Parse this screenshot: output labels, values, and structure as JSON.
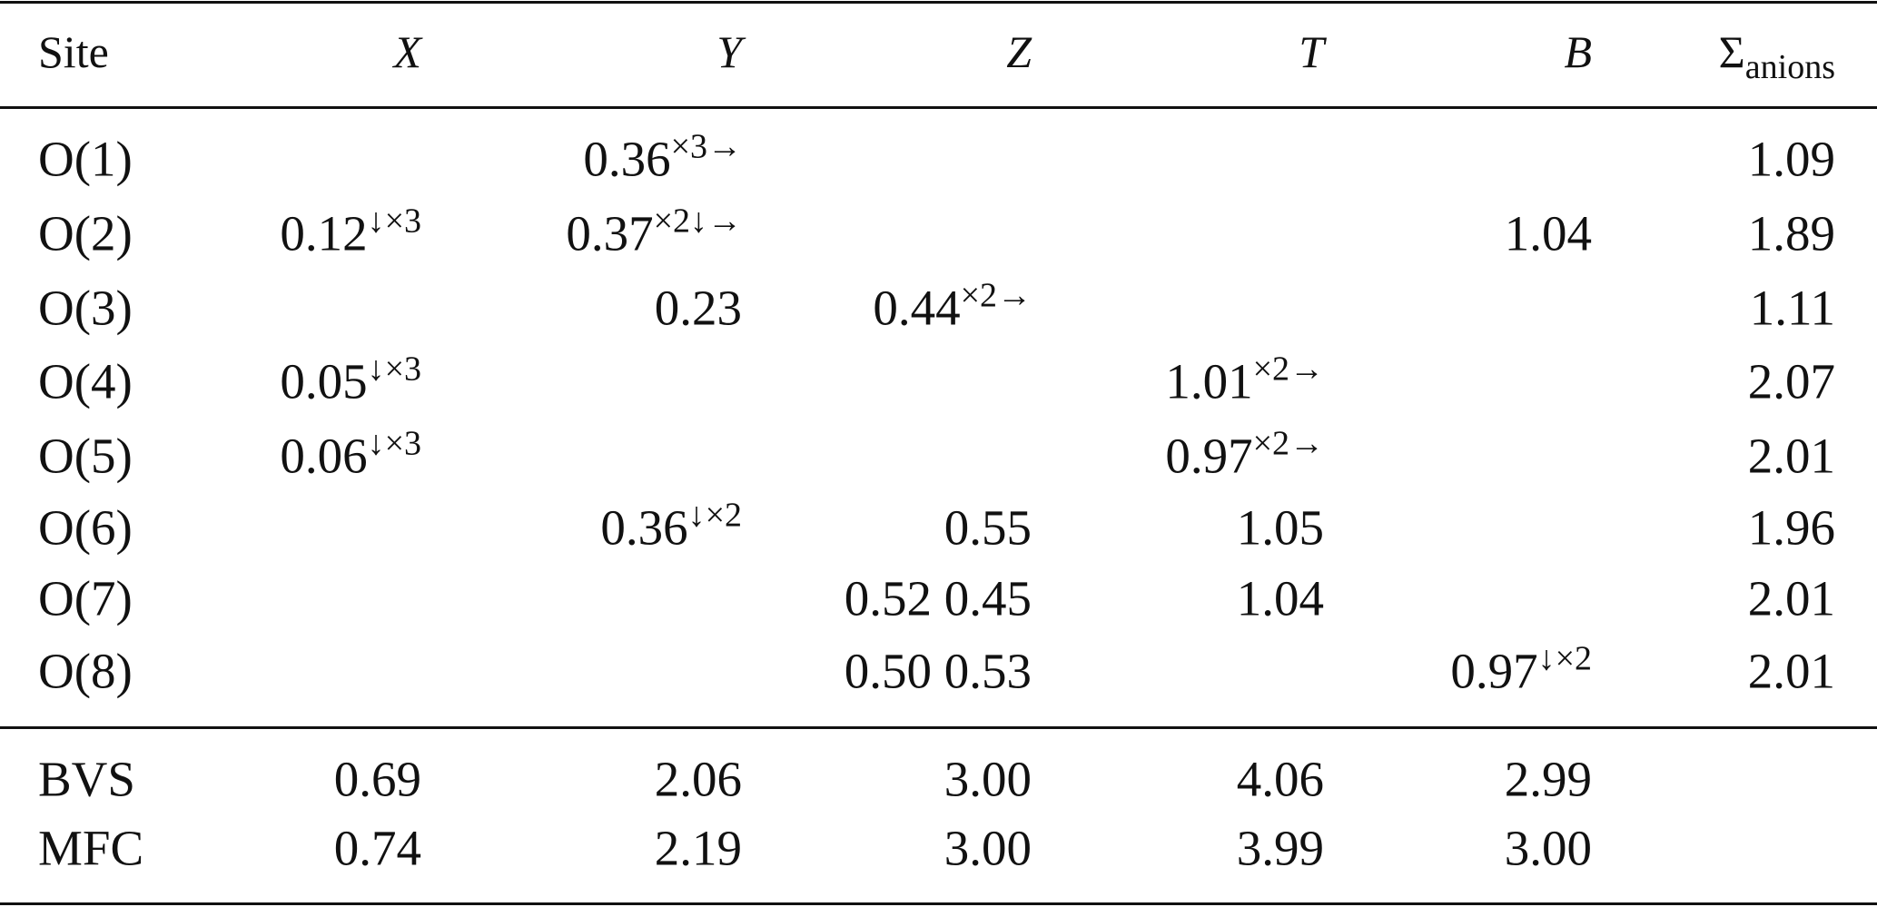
{
  "table": {
    "header": [
      "Site",
      "X",
      "Y",
      "Z",
      "T",
      "B",
      {
        "text": "Σ",
        "sub": "anions"
      }
    ],
    "rows": [
      [
        "O(1)",
        null,
        {
          "text": "0.36",
          "sup": "×3→"
        },
        null,
        null,
        null,
        "1.09"
      ],
      [
        "O(2)",
        {
          "text": "0.12",
          "sup": "↓×3"
        },
        {
          "text": "0.37",
          "sup": "×2↓→"
        },
        null,
        null,
        "1.04",
        "1.89"
      ],
      [
        "O(3)",
        null,
        "0.23",
        {
          "text": "0.44",
          "sup": "×2→"
        },
        null,
        null,
        "1.11"
      ],
      [
        "O(4)",
        {
          "text": "0.05",
          "sup": "↓×3"
        },
        null,
        null,
        {
          "text": "1.01",
          "sup": "×2→"
        },
        null,
        "2.07"
      ],
      [
        "O(5)",
        {
          "text": "0.06",
          "sup": "↓×3"
        },
        null,
        null,
        {
          "text": "0.97",
          "sup": "×2→"
        },
        null,
        "2.01"
      ],
      [
        "O(6)",
        null,
        {
          "text": "0.36",
          "sup": "↓×2"
        },
        "0.55",
        "1.05",
        null,
        "1.96"
      ],
      [
        "O(7)",
        null,
        null,
        "0.52 0.45",
        "1.04",
        null,
        "2.01"
      ],
      [
        "O(8)",
        null,
        null,
        "0.50 0.53",
        null,
        {
          "text": "0.97",
          "sup": "↓×2"
        },
        "2.01"
      ]
    ],
    "footer_rows": [
      [
        "BVS",
        "0.69",
        "2.06",
        "3.00",
        "4.06",
        "2.99"
      ],
      [
        "MFC",
        "0.74",
        "2.19",
        "3.00",
        "3.99",
        "3.00"
      ]
    ]
  }
}
